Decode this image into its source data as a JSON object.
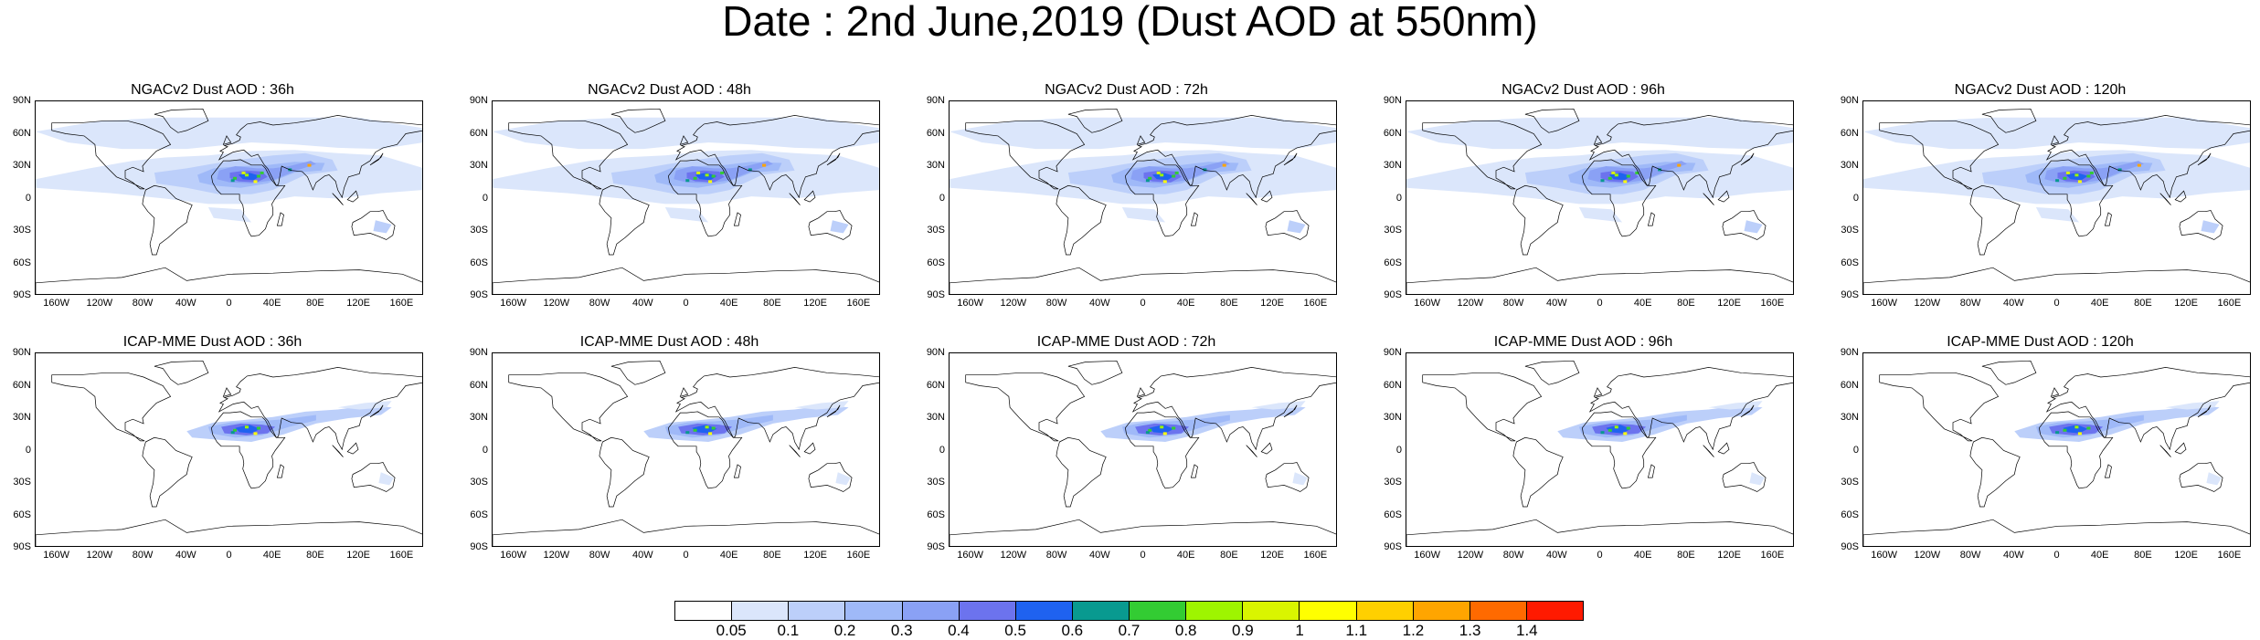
{
  "title": "Date : 2nd June,2019 (Dust AOD at 550nm)",
  "panels": [
    {
      "title": "NGACv2 Dust AOD : 36h"
    },
    {
      "title": "NGACv2 Dust AOD : 48h"
    },
    {
      "title": "NGACv2 Dust AOD : 72h"
    },
    {
      "title": "NGACv2 Dust AOD : 96h"
    },
    {
      "title": "NGACv2 Dust AOD : 120h"
    },
    {
      "title": "ICAP-MME Dust AOD : 36h"
    },
    {
      "title": "ICAP-MME Dust AOD : 48h"
    },
    {
      "title": "ICAP-MME Dust AOD : 72h"
    },
    {
      "title": "ICAP-MME Dust AOD : 96h"
    },
    {
      "title": "ICAP-MME Dust AOD : 120h"
    }
  ],
  "lat_labels": [
    "90N",
    "60N",
    "30N",
    "0",
    "30S",
    "60S",
    "90S"
  ],
  "lon_labels": [
    "160W",
    "120W",
    "80W",
    "40W",
    "0",
    "40E",
    "80E",
    "120E",
    "160E"
  ],
  "colorbar": {
    "labels": [
      "0.05",
      "0.1",
      "0.2",
      "0.3",
      "0.4",
      "0.5",
      "0.6",
      "0.7",
      "0.8",
      "0.9",
      "1",
      "1.1",
      "1.2",
      "1.3",
      "1.4"
    ],
    "colors": [
      "#ffffff",
      "#dbe6fb",
      "#bccffa",
      "#9fb9f8",
      "#8aa1f5",
      "#6c73ee",
      "#1f62f0",
      "#099a90",
      "#33cc33",
      "#9ef500",
      "#d9f500",
      "#ffff00",
      "#ffd000",
      "#ffa500",
      "#ff6a00",
      "#ff1a00"
    ]
  }
}
